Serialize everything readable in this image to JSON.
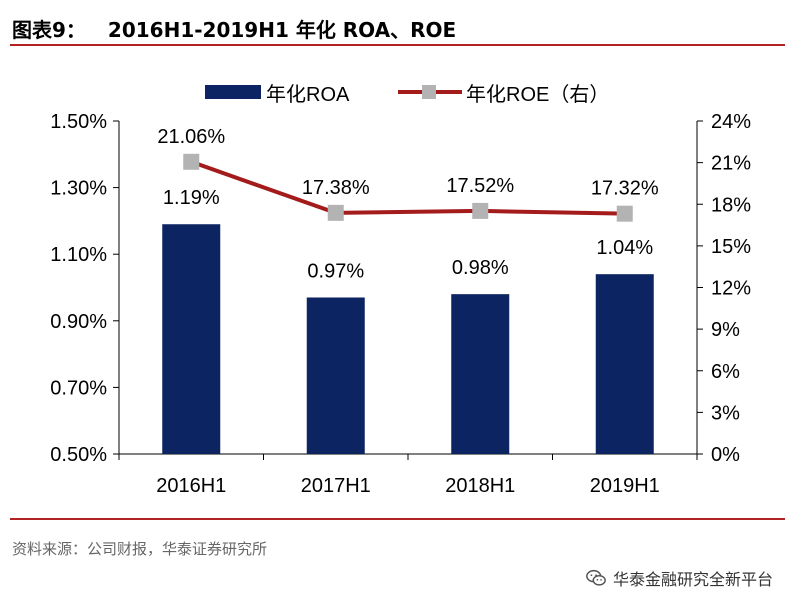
{
  "figure": {
    "label": "图表9：",
    "title": "2016H1-2019H1 年化 ROA、ROE"
  },
  "source_note": "资料来源：公司财报，华泰证券研究所",
  "watermark": {
    "icon": "wechat-icon",
    "text": "华泰金融研究全新平台"
  },
  "colors": {
    "bar": "#0d2462",
    "line": "#a31b1b",
    "marker": "#b3b3b3",
    "rule": "#b22222"
  },
  "chart_data": {
    "type": "bar",
    "categories": [
      "2016H1",
      "2017H1",
      "2018H1",
      "2019H1"
    ],
    "series": [
      {
        "name": "年化ROA",
        "type": "bar",
        "axis": "left",
        "values": [
          1.19,
          0.97,
          0.98,
          1.04
        ],
        "labels": [
          "1.19%",
          "0.97%",
          "0.98%",
          "1.04%"
        ]
      },
      {
        "name": "年化ROE（右）",
        "type": "line",
        "axis": "right",
        "values": [
          21.06,
          17.38,
          17.52,
          17.32
        ],
        "labels": [
          "21.06%",
          "17.38%",
          "17.52%",
          "17.32%"
        ]
      }
    ],
    "y_left": {
      "range": [
        0.5,
        1.5
      ],
      "ticks": [
        "1.50%",
        "1.30%",
        "1.10%",
        "0.90%",
        "0.70%",
        "0.50%"
      ],
      "tick_values": [
        1.5,
        1.3,
        1.1,
        0.9,
        0.7,
        0.5
      ]
    },
    "y_right": {
      "range": [
        0,
        24
      ],
      "ticks": [
        "24%",
        "21%",
        "18%",
        "15%",
        "12%",
        "9%",
        "6%",
        "3%",
        "0%"
      ],
      "tick_values": [
        24,
        21,
        18,
        15,
        12,
        9,
        6,
        3,
        0
      ]
    },
    "legend": {
      "placement": "top-center"
    },
    "grid": false
  }
}
